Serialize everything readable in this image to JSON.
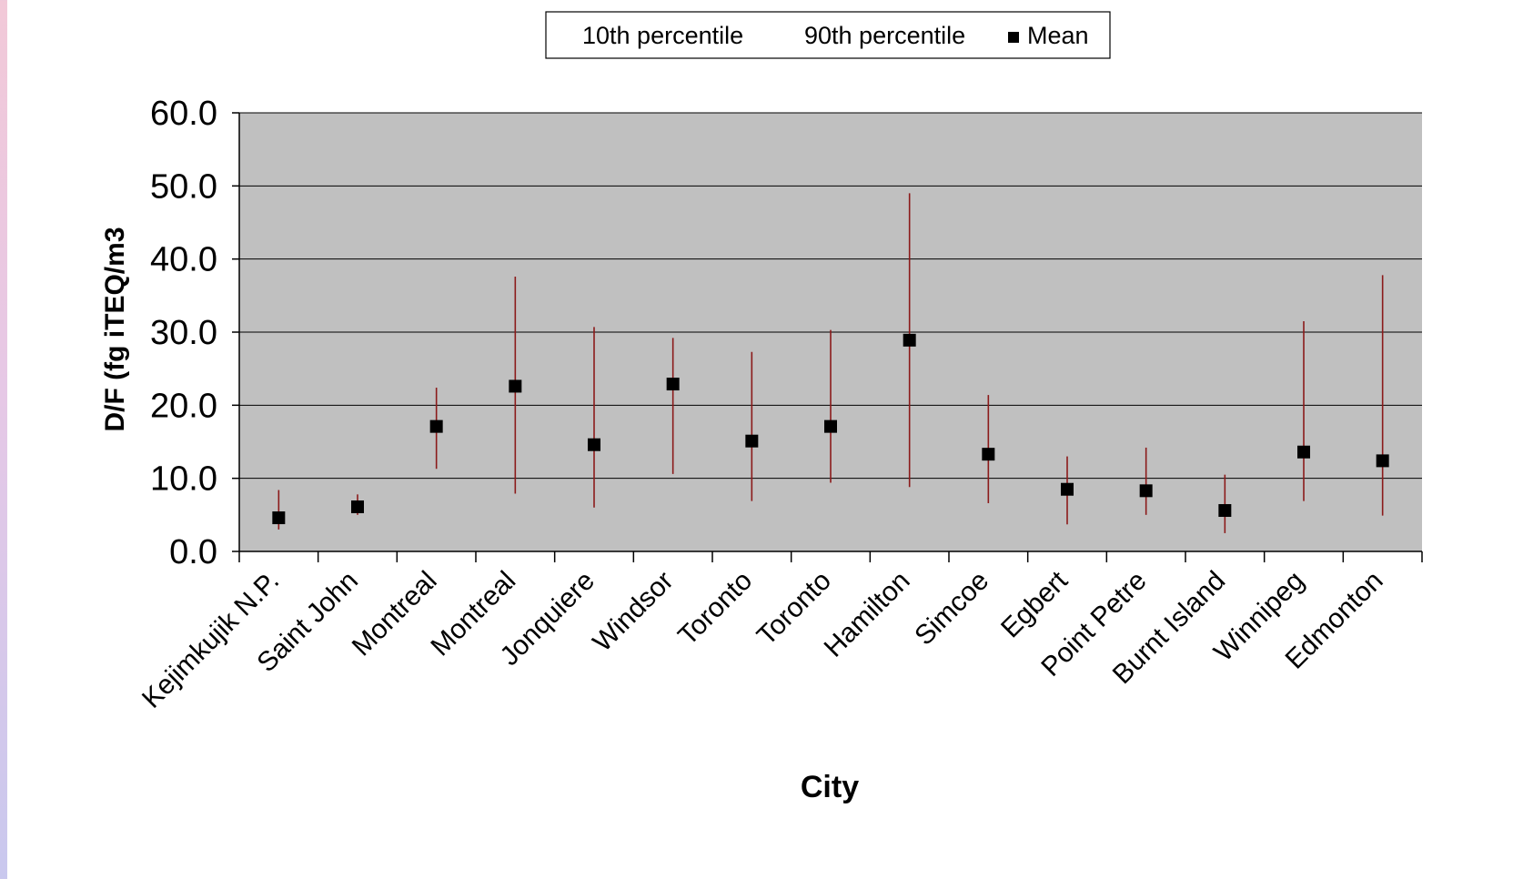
{
  "chart_data": {
    "type": "scatter",
    "title": "",
    "xlabel": "City",
    "ylabel": "D/F  (fg iTEQ/m3",
    "ylim": [
      0,
      60
    ],
    "yticks": [
      "0.0",
      "10.0",
      "20.0",
      "30.0",
      "40.0",
      "50.0",
      "60.0"
    ],
    "grid": true,
    "legend_position": "top-center",
    "legend": {
      "p10": "10th percentile",
      "p90": "90th percentile",
      "mean": "Mean"
    },
    "categories": [
      "Kejimkujik N.P.",
      "Saint John",
      "Montreal",
      "Montreal",
      "Jonquiere",
      "Windsor",
      "Toronto",
      "Toronto",
      "Hamilton",
      "Simcoe",
      "Egbert",
      "Point Petre",
      "Burnt Island",
      "Winnipeg",
      "Edmonton"
    ],
    "series": [
      {
        "name": "10th percentile",
        "values": [
          3.0,
          5.0,
          11.3,
          7.9,
          6.0,
          10.6,
          6.9,
          9.4,
          8.8,
          6.6,
          3.7,
          5.0,
          2.5,
          6.9,
          4.9
        ]
      },
      {
        "name": "90th percentile",
        "values": [
          8.4,
          7.8,
          22.4,
          37.6,
          30.7,
          29.2,
          27.3,
          30.3,
          49.0,
          21.4,
          13.0,
          14.2,
          10.5,
          31.5,
          37.8
        ]
      },
      {
        "name": "Mean",
        "values": [
          4.6,
          6.1,
          17.1,
          22.6,
          14.6,
          22.9,
          15.1,
          17.1,
          28.9,
          13.3,
          8.5,
          8.3,
          5.6,
          13.6,
          12.4
        ]
      }
    ],
    "colors": {
      "plot_background": "#c0c0c0",
      "error_bar": "#8b1a1a",
      "marker": "#000000",
      "gridline": "#000000"
    }
  }
}
